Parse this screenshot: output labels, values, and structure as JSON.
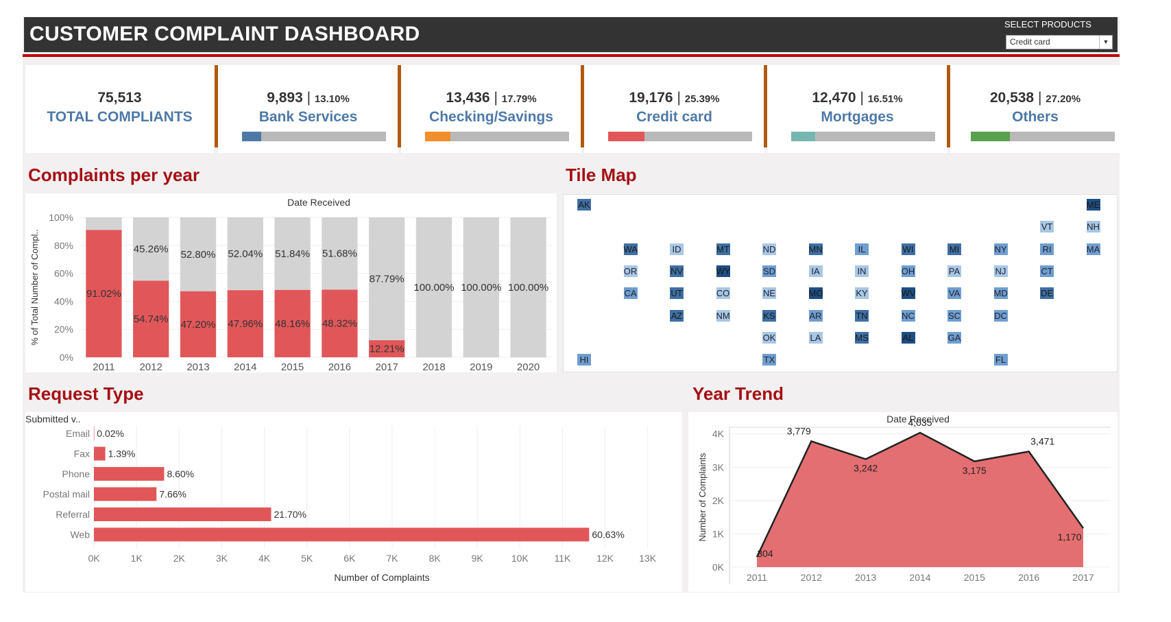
{
  "header": {
    "title": "CUSTOMER COMPLAINT DASHBOARD",
    "select_label": "SELECT PRODUCTS",
    "select_value": "Credit card"
  },
  "kpis": [
    {
      "value": "75,513",
      "name": "TOTAL COMPLIANTS"
    },
    {
      "value": "9,893",
      "pct": "13.10%",
      "name": "Bank Services",
      "share": 0.131,
      "color": "#4e79a7"
    },
    {
      "value": "13,436",
      "pct": "17.79%",
      "name": "Checking/Savings",
      "share": 0.1779,
      "color": "#f28e2b"
    },
    {
      "value": "19,176",
      "pct": "25.39%",
      "name": "Credit card",
      "share": 0.2539,
      "color": "#e15759"
    },
    {
      "value": "12,470",
      "pct": "16.51%",
      "name": "Mortgages",
      "share": 0.1651,
      "color": "#76b7b2"
    },
    {
      "value": "20,538",
      "pct": "27.20%",
      "name": "Others",
      "share": 0.272,
      "color": "#59a14f"
    }
  ],
  "sections": {
    "complaints_per_year": "Complaints per year",
    "tile_map": "Tile Map",
    "request_type": "Request Type",
    "year_trend": "Year Trend"
  },
  "colors": {
    "accent": "#e15759",
    "muted": "#d3d3d3",
    "title_red": "#a50f15",
    "kpi_divider": "#b05a0e"
  },
  "chart_data": [
    {
      "type": "bar",
      "stacked": true,
      "percent": true,
      "title": "Date Received",
      "ylabel": "% of Total Number of Compl..",
      "ylim": [
        0,
        100
      ],
      "yticks": [
        "0%",
        "20%",
        "40%",
        "60%",
        "80%",
        "100%"
      ],
      "categories": [
        "2011",
        "2012",
        "2013",
        "2014",
        "2015",
        "2016",
        "2017",
        "2018",
        "2019",
        "2020"
      ],
      "series": [
        {
          "values": [
            91.02,
            54.74,
            47.2,
            47.96,
            48.16,
            48.32,
            12.21,
            0,
            0,
            0
          ],
          "labels": [
            "91.02%",
            "54.74%",
            "47.20%",
            "47.96%",
            "48.16%",
            "48.32%",
            "12.21%",
            "",
            "",
            ""
          ]
        },
        {
          "values": [
            8.98,
            45.26,
            52.8,
            52.04,
            51.84,
            51.68,
            87.79,
            100,
            100,
            100
          ],
          "labels": [
            "",
            "45.26%",
            "52.80%",
            "52.04%",
            "51.84%",
            "51.68%",
            "87.79%",
            "100.00%",
            "100.00%",
            "100.00%"
          ]
        }
      ]
    },
    {
      "type": "heatmap",
      "subtype": "tile-map",
      "tiles": [
        {
          "state": "AK",
          "row": 0,
          "col": 0,
          "level": 3
        },
        {
          "state": "ME",
          "row": 0,
          "col": 11,
          "level": 4
        },
        {
          "state": "VT",
          "row": 1,
          "col": 10,
          "level": 1
        },
        {
          "state": "NH",
          "row": 1,
          "col": 11,
          "level": 1
        },
        {
          "state": "WA",
          "row": 2,
          "col": 1,
          "level": 3
        },
        {
          "state": "ID",
          "row": 2,
          "col": 2,
          "level": 1
        },
        {
          "state": "MT",
          "row": 2,
          "col": 3,
          "level": 3
        },
        {
          "state": "ND",
          "row": 2,
          "col": 4,
          "level": 1
        },
        {
          "state": "MN",
          "row": 2,
          "col": 5,
          "level": 3
        },
        {
          "state": "IL",
          "row": 2,
          "col": 6,
          "level": 2
        },
        {
          "state": "WI",
          "row": 2,
          "col": 7,
          "level": 3
        },
        {
          "state": "MI",
          "row": 2,
          "col": 8,
          "level": 3
        },
        {
          "state": "NY",
          "row": 2,
          "col": 9,
          "level": 2
        },
        {
          "state": "RI",
          "row": 2,
          "col": 10,
          "level": 2
        },
        {
          "state": "MA",
          "row": 2,
          "col": 11,
          "level": 2
        },
        {
          "state": "OR",
          "row": 3,
          "col": 1,
          "level": 1
        },
        {
          "state": "NV",
          "row": 3,
          "col": 2,
          "level": 3
        },
        {
          "state": "WY",
          "row": 3,
          "col": 3,
          "level": 4
        },
        {
          "state": "SD",
          "row": 3,
          "col": 4,
          "level": 2
        },
        {
          "state": "IA",
          "row": 3,
          "col": 5,
          "level": 1
        },
        {
          "state": "IN",
          "row": 3,
          "col": 6,
          "level": 1
        },
        {
          "state": "OH",
          "row": 3,
          "col": 7,
          "level": 2
        },
        {
          "state": "PA",
          "row": 3,
          "col": 8,
          "level": 1
        },
        {
          "state": "NJ",
          "row": 3,
          "col": 9,
          "level": 1
        },
        {
          "state": "CT",
          "row": 3,
          "col": 10,
          "level": 2
        },
        {
          "state": "CA",
          "row": 4,
          "col": 1,
          "level": 2
        },
        {
          "state": "UT",
          "row": 4,
          "col": 2,
          "level": 3
        },
        {
          "state": "CO",
          "row": 4,
          "col": 3,
          "level": 1
        },
        {
          "state": "NE",
          "row": 4,
          "col": 4,
          "level": 1
        },
        {
          "state": "MO",
          "row": 4,
          "col": 5,
          "level": 4
        },
        {
          "state": "KY",
          "row": 4,
          "col": 6,
          "level": 1
        },
        {
          "state": "WV",
          "row": 4,
          "col": 7,
          "level": 4
        },
        {
          "state": "VA",
          "row": 4,
          "col": 8,
          "level": 2
        },
        {
          "state": "MD",
          "row": 4,
          "col": 9,
          "level": 2
        },
        {
          "state": "DE",
          "row": 4,
          "col": 10,
          "level": 3
        },
        {
          "state": "AZ",
          "row": 5,
          "col": 2,
          "level": 3
        },
        {
          "state": "NM",
          "row": 5,
          "col": 3,
          "level": 1
        },
        {
          "state": "KS",
          "row": 5,
          "col": 4,
          "level": 3
        },
        {
          "state": "AR",
          "row": 5,
          "col": 5,
          "level": 2
        },
        {
          "state": "TN",
          "row": 5,
          "col": 6,
          "level": 3
        },
        {
          "state": "NC",
          "row": 5,
          "col": 7,
          "level": 2
        },
        {
          "state": "SC",
          "row": 5,
          "col": 8,
          "level": 2
        },
        {
          "state": "DC",
          "row": 5,
          "col": 9,
          "level": 2
        },
        {
          "state": "OK",
          "row": 6,
          "col": 4,
          "level": 1
        },
        {
          "state": "LA",
          "row": 6,
          "col": 5,
          "level": 1
        },
        {
          "state": "MS",
          "row": 6,
          "col": 6,
          "level": 3
        },
        {
          "state": "AL",
          "row": 6,
          "col": 7,
          "level": 4
        },
        {
          "state": "GA",
          "row": 6,
          "col": 8,
          "level": 2
        },
        {
          "state": "HI",
          "row": 7,
          "col": 0,
          "level": 2
        },
        {
          "state": "TX",
          "row": 7,
          "col": 4,
          "level": 2
        },
        {
          "state": "FL",
          "row": 7,
          "col": 9,
          "level": 2
        }
      ]
    },
    {
      "type": "bar",
      "orientation": "horizontal",
      "header": "Submitted v..",
      "xlabel": "Number of Complaints",
      "xlim": [
        0,
        13000
      ],
      "xticks": [
        "0K",
        "1K",
        "2K",
        "3K",
        "4K",
        "5K",
        "6K",
        "7K",
        "8K",
        "9K",
        "10K",
        "11K",
        "12K",
        "13K"
      ],
      "categories": [
        "Email",
        "Fax",
        "Phone",
        "Postal mail",
        "Referral",
        "Web"
      ],
      "values": [
        4,
        267,
        1649,
        1469,
        4161,
        11626
      ],
      "labels": [
        "0.02%",
        "1.39%",
        "8.60%",
        "7.66%",
        "21.70%",
        "60.63%"
      ]
    },
    {
      "type": "area",
      "title": "Date Received",
      "ylabel": "Number of Complaints",
      "ylim": [
        0,
        4200
      ],
      "yticks": [
        "0K",
        "1K",
        "2K",
        "3K",
        "4K"
      ],
      "x": [
        "2011",
        "2012",
        "2013",
        "2014",
        "2015",
        "2016",
        "2017"
      ],
      "values": [
        304,
        3779,
        3242,
        4035,
        3175,
        3471,
        1170
      ],
      "labels": [
        "304",
        "3,779",
        "3,242",
        "4,035",
        "3,175",
        "3,471",
        "1,170"
      ]
    }
  ]
}
